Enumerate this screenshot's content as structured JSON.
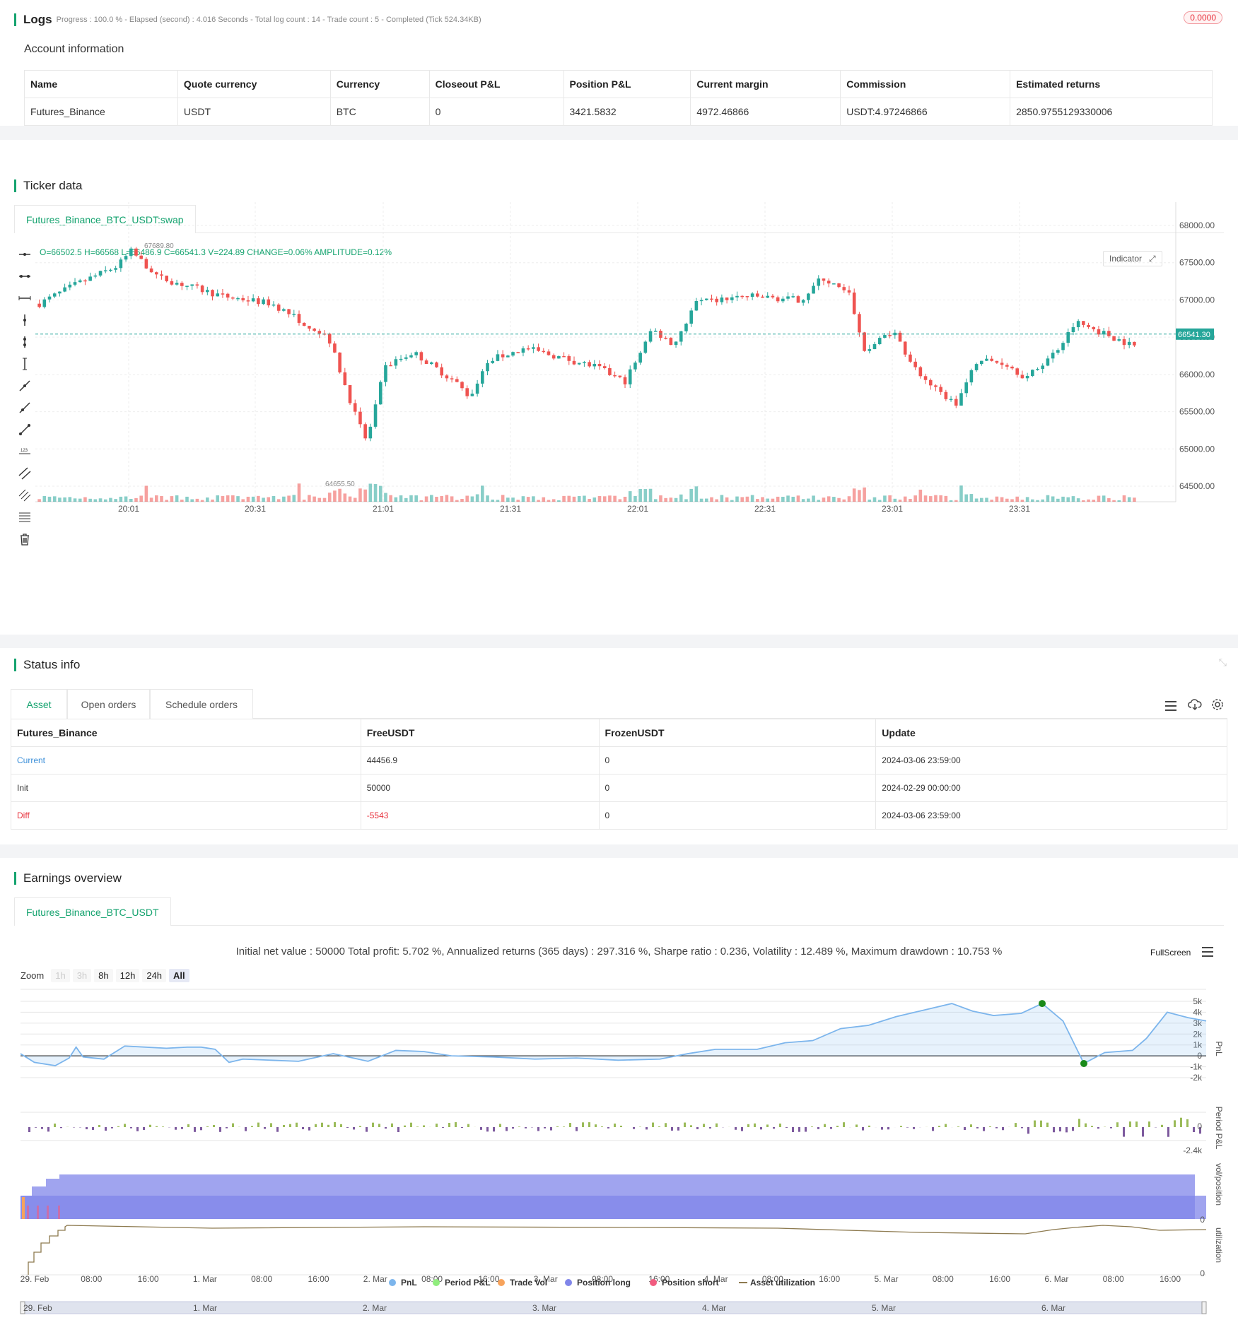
{
  "logs": {
    "title": "Logs",
    "progress_text": "Progress : 100.0 % - Elapsed (second) : 4.016  Seconds - Total log count : 14 - Trade count : 5 - Completed (Tick 524.34KB)",
    "badge": "0.0000"
  },
  "account": {
    "title": "Account information",
    "headers": [
      "Name",
      "Quote currency",
      "Currency",
      "Closeout P&L",
      "Position P&L",
      "Current margin",
      "Commission",
      "Estimated returns"
    ],
    "row": [
      "Futures_Binance",
      "USDT",
      "BTC",
      "0",
      "3421.5832",
      "4972.46866",
      "USDT:4.97246866",
      "2850.9755129330006"
    ]
  },
  "ticker": {
    "title": "Ticker data",
    "tab": "Futures_Binance_BTC_USDT:swap",
    "ohlc_text": "O=66502.5 H=66568 L=66486.9 C=66541.3 V=224.89 CHANGE=0.06% AMPLITUDE=0.12%",
    "indicator_btn": "Indicator",
    "high_marker": "67689.80",
    "low_marker": "64655.50",
    "last_price": "66541.30",
    "y_ticks": [
      "68000.00",
      "67500.00",
      "67000.00",
      "66500.00",
      "66000.00",
      "65500.00",
      "65000.00",
      "64500.00"
    ],
    "x_ticks": [
      "20:01",
      "20:31",
      "21:01",
      "21:31",
      "22:01",
      "22:31",
      "23:01",
      "23:31"
    ],
    "up_color": "#26a69a",
    "down_color": "#ef5350"
  },
  "status": {
    "title": "Status info",
    "tabs": [
      "Asset",
      "Open orders",
      "Schedule orders"
    ],
    "headers": [
      "Futures_Binance",
      "FreeUSDT",
      "FrozenUSDT",
      "Update"
    ],
    "rows": [
      [
        "Current",
        "44456.9",
        "0",
        "2024-03-06 23:59:00"
      ],
      [
        "Init",
        "50000",
        "0",
        "2024-02-29 00:00:00"
      ],
      [
        "Diff",
        "-5543",
        "0",
        "2024-03-06 23:59:00"
      ]
    ]
  },
  "earnings": {
    "title": "Earnings overview",
    "tab": "Futures_Binance_BTC_USDT",
    "summary": "Initial net value : 50000 Total profit: 5.702 %, Annualized returns (365 days) : 297.316 %, Sharpe ratio : 0.236, Volatility : 12.489 %, Maximum drawdown : 10.753 %",
    "fullscreen": "FullScreen",
    "zoom_label": "Zoom",
    "zoom_buttons": [
      "1h",
      "3h",
      "8h",
      "12h",
      "24h",
      "All"
    ],
    "pnl_ticks": [
      "5k",
      "4k",
      "3k",
      "2k",
      "1k",
      "0",
      "-1k",
      "-2k"
    ],
    "period_ticks": [
      "0",
      "-2.4k"
    ],
    "vol_ticks": [
      "0"
    ],
    "util_ticks": [
      "0"
    ],
    "axis_titles": [
      "PnL",
      "Period P&L",
      "vol/position",
      "utilization"
    ],
    "x_ticks": [
      "29. Feb",
      "08:00",
      "16:00",
      "1. Mar",
      "08:00",
      "16:00",
      "2. Mar",
      "08:00",
      "16:00",
      "3. Mar",
      "08:00",
      "16:00",
      "4. Mar",
      "08:00",
      "16:00",
      "5. Mar",
      "08:00",
      "16:00",
      "6. Mar",
      "08:00",
      "16:00"
    ],
    "legend": [
      {
        "label": "PnL",
        "color": "#7cb5ec"
      },
      {
        "label": "Period P&L",
        "color": "#90ed7d"
      },
      {
        "label": "Trade Vol",
        "color": "#f7a35c"
      },
      {
        "label": "Position long",
        "color": "#8085e9"
      },
      {
        "label": "Position short",
        "color": "#f15c80"
      },
      {
        "label": "Asset utilization",
        "color": "#8d7a4f"
      }
    ],
    "navigator_ticks": [
      "29. Feb",
      "1. Mar",
      "2. Mar",
      "3. Mar",
      "4. Mar",
      "5. Mar",
      "6. Mar"
    ]
  }
}
